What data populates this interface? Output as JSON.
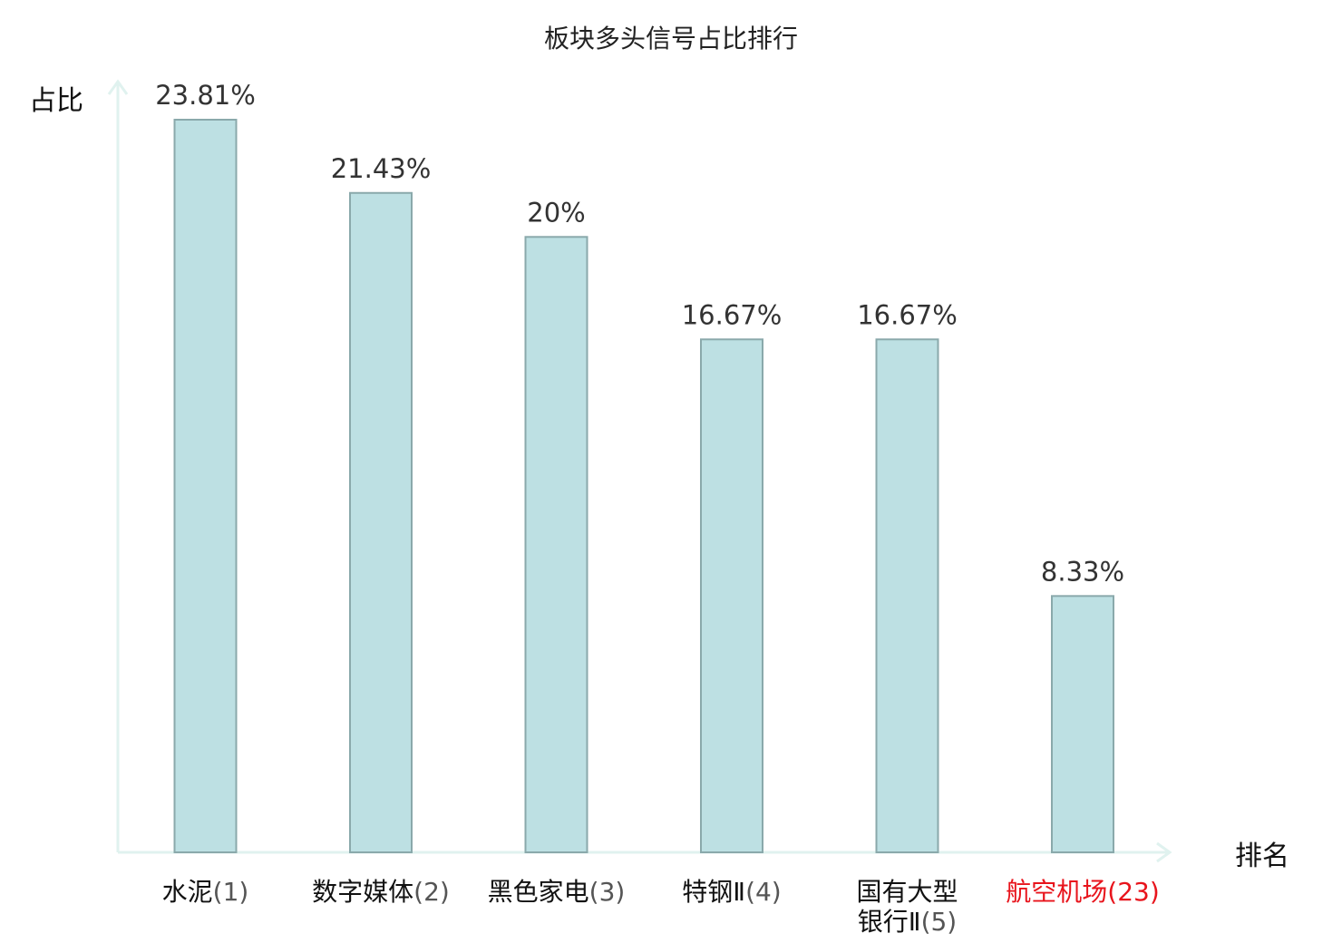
{
  "chart_data": {
    "type": "bar",
    "title": "板块多头信号占比排行",
    "ylabel": "占比",
    "xlabel": "排名",
    "categories": [
      {
        "name": "水泥",
        "rank": "(1)",
        "highlight": false
      },
      {
        "name": "数字媒体",
        "rank": "(2)",
        "highlight": false
      },
      {
        "name": "黑色家电",
        "rank": "(3)",
        "highlight": false
      },
      {
        "name": "特钢Ⅱ",
        "rank": "(4)",
        "highlight": false
      },
      {
        "name": "国有大型银行Ⅱ",
        "rank": "(5)",
        "highlight": false
      },
      {
        "name": "航空机场",
        "rank": "(23)",
        "highlight": true
      }
    ],
    "values": [
      23.81,
      21.43,
      20,
      16.67,
      16.67,
      8.33
    ],
    "value_labels": [
      "23.81%",
      "21.43%",
      "20%",
      "16.67%",
      "16.67%",
      "8.33%"
    ],
    "ylim": [
      0,
      25
    ],
    "grid": false,
    "colors": {
      "bar_fill": "#bde0e3",
      "bar_stroke": "#8aa9ab",
      "axis": "#e0f2ef",
      "text": "#111111",
      "rank_text": "#555555",
      "highlight": "#e8141c"
    }
  }
}
